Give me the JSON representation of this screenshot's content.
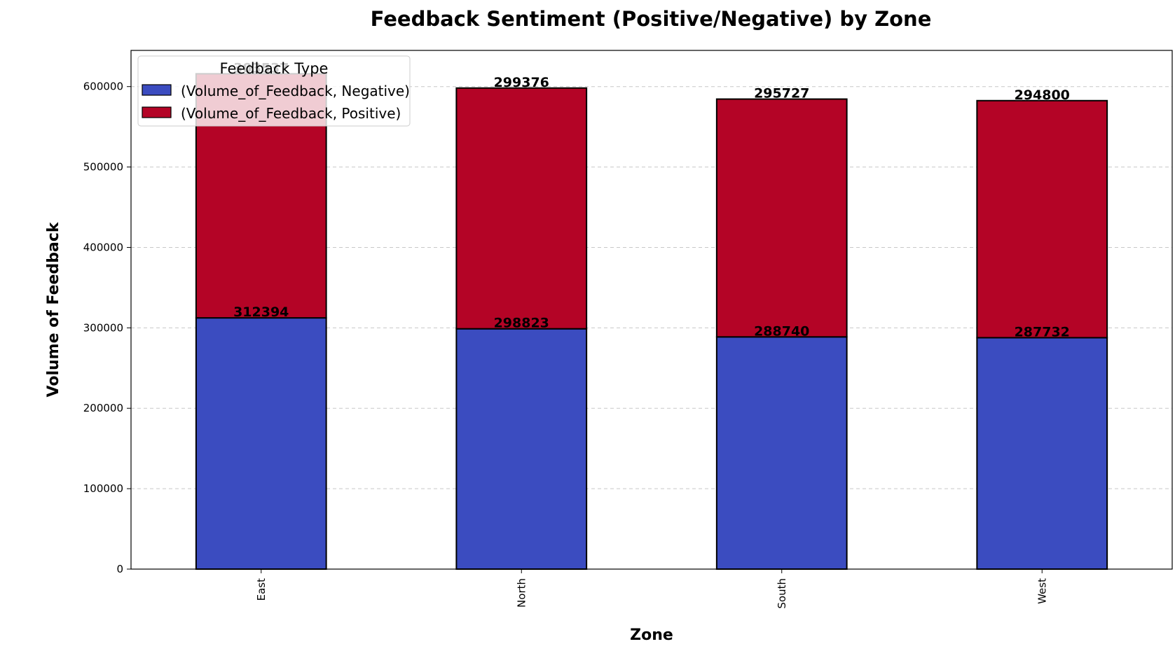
{
  "chart_data": {
    "type": "bar",
    "stacked": true,
    "title": "Feedback Sentiment (Positive/Negative) by Zone",
    "xlabel": "Zone",
    "ylabel": "Volume of Feedback",
    "categories": [
      "East",
      "North",
      "South",
      "West"
    ],
    "series": [
      {
        "name": "(Volume_of_Feedback, Negative)",
        "color": "#3b4cc0",
        "values": [
          312394,
          298823,
          288740,
          287732
        ]
      },
      {
        "name": "(Volume_of_Feedback, Positive)",
        "color": "#b40426",
        "values": [
          303537,
          299376,
          295727,
          294800
        ]
      }
    ],
    "ylim": [
      0,
      645000
    ],
    "yticks": [
      0,
      100000,
      200000,
      300000,
      400000,
      500000,
      600000
    ],
    "grid": true,
    "legend": {
      "title": "Feedback Type",
      "placement": "top-left"
    }
  }
}
